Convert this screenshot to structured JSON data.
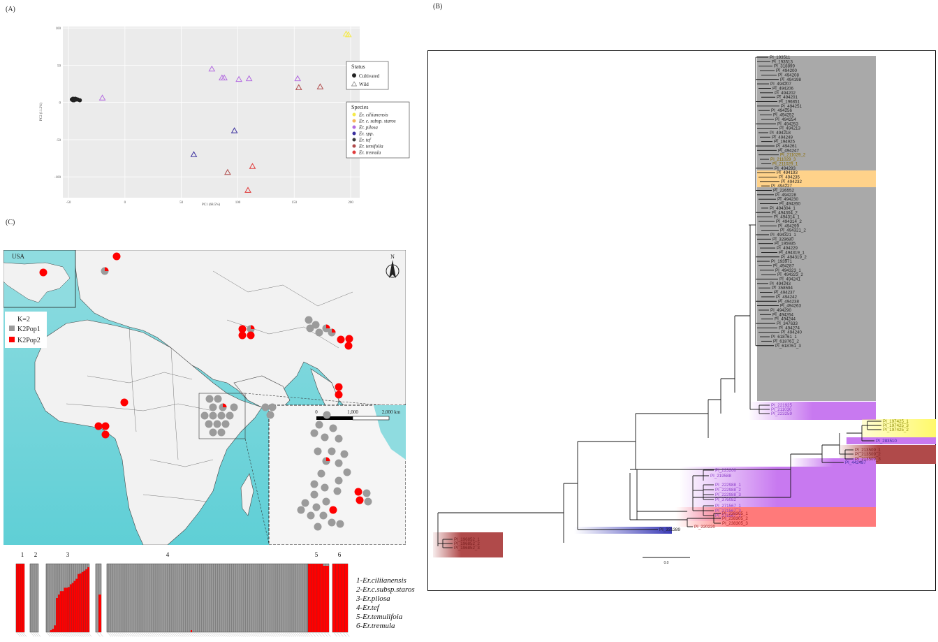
{
  "panels": {
    "a": "(A)",
    "b": "(B)",
    "c": "(C)"
  },
  "pca": {
    "xlabel": "PC1 (68.5%)",
    "ylabel": "PC2 (11.2%)",
    "xticks": [
      -50,
      0,
      50,
      100,
      150,
      200
    ],
    "yticks": [
      100,
      50,
      0,
      -50,
      -100
    ],
    "xlim": [
      -55,
      208
    ],
    "ylim": [
      -128,
      102
    ],
    "status_title": "Status",
    "status_items": [
      "Cultivated",
      "Wild"
    ],
    "species_title": "Species",
    "species": [
      {
        "name": "Er. ciliianensis",
        "color": "#f5ea4a"
      },
      {
        "name": "Er. c. subsp. staros",
        "color": "#f5b55a"
      },
      {
        "name": "Er. pilosa",
        "color": "#b36be0"
      },
      {
        "name": "Er. spp.",
        "color": "#3a2f9e"
      },
      {
        "name": "Er. tef",
        "color": "#3a3a3a"
      },
      {
        "name": "Er. temifolia",
        "color": "#b04a4a"
      },
      {
        "name": "Er. tremula",
        "color": "#e03a3a"
      }
    ]
  },
  "chart_data": [
    {
      "type": "scatter",
      "xlabel": "PC1 (68.5%)",
      "ylabel": "PC2 (11.2%)",
      "xlim": [
        -55,
        208
      ],
      "ylim": [
        -128,
        102
      ],
      "series": [
        {
          "name": "Cultivated",
          "marker": "circle",
          "color": "#222222",
          "points": [
            [
              -47,
              4
            ],
            [
              -46,
              5
            ],
            [
              -45,
              4
            ],
            [
              -44,
              5
            ],
            [
              -46,
              3
            ],
            [
              -45,
              3
            ],
            [
              -43,
              4
            ],
            [
              -42,
              4
            ],
            [
              -40,
              3
            ]
          ]
        },
        {
          "name": "Wild",
          "marker": "triangle",
          "points": [
            {
              "x": 196,
              "y": 92,
              "color": "#f5ea4a"
            },
            {
              "x": 198,
              "y": 91,
              "color": "#f5ea4a"
            },
            {
              "x": -20,
              "y": 6,
              "color": "#b36be0"
            },
            {
              "x": 77,
              "y": 45,
              "color": "#b36be0"
            },
            {
              "x": 86,
              "y": 33,
              "color": "#b36be0"
            },
            {
              "x": 88,
              "y": 33,
              "color": "#b36be0"
            },
            {
              "x": 101,
              "y": 31,
              "color": "#b36be0"
            },
            {
              "x": 110,
              "y": 32,
              "color": "#b36be0"
            },
            {
              "x": 153,
              "y": 32,
              "color": "#b36be0"
            },
            {
              "x": 97,
              "y": -38,
              "color": "#3a2f9e"
            },
            {
              "x": 61,
              "y": -70,
              "color": "#3a2f9e"
            },
            {
              "x": 154,
              "y": 20,
              "color": "#b04a4a"
            },
            {
              "x": 173,
              "y": 21,
              "color": "#b04a4a"
            },
            {
              "x": 91,
              "y": -94,
              "color": "#b04a4a"
            },
            {
              "x": 113,
              "y": -86,
              "color": "#e03a3a"
            },
            {
              "x": 109,
              "y": -118,
              "color": "#e03a3a"
            }
          ]
        }
      ]
    },
    {
      "type": "bar",
      "groups": [
        {
          "label": "1",
          "n": 4,
          "red": [
            1,
            1,
            1,
            1
          ]
        },
        {
          "label": "2",
          "n": 4,
          "red": [
            0,
            0,
            0,
            0
          ]
        },
        {
          "label": "3",
          "n": 22,
          "red": [
            0,
            0,
            0.03,
            0.05,
            0.1,
            0.5,
            0.55,
            0.6,
            0.6,
            0.65,
            0.65,
            0.66,
            0.7,
            0.72,
            0.75,
            0.78,
            0.85,
            0.86,
            0.88,
            0.9,
            0.92,
            0.95
          ]
        },
        {
          "label": "",
          "n": 2,
          "red": [
            0,
            0.55
          ]
        },
        {
          "label": "4",
          "n": 100,
          "red": []
        },
        {
          "label": "5",
          "n": 7,
          "red": [
            1,
            1,
            1,
            1,
            1,
            0.97,
            0.97
          ]
        },
        {
          "label": "6",
          "n": 5,
          "red": [
            1,
            1,
            1,
            1,
            1
          ]
        }
      ],
      "legend": [
        "1-Er.ciliianensis",
        "2-Er.c.subsp.staros",
        "3-Er.pilosa",
        "4-Er.tef",
        "5-Er.temulifoia",
        "6-Er.tremula"
      ]
    }
  ],
  "map": {
    "inset_label": "USA",
    "legend_title": "K=2",
    "legend_items": [
      {
        "name": "K2Pop1",
        "color": "#9b9b9b"
      },
      {
        "name": "K2Pop2",
        "color": "#ff0000"
      }
    ],
    "scale_labels": [
      "0",
      "1,000",
      "2,000 km"
    ],
    "north": "N"
  },
  "tree": {
    "scale_label": "0.0",
    "tef_labels": [
      "PI_193511",
      "PI_193513",
      "PI_318899",
      "PI_494200",
      "PI_494208",
      "PI_494198",
      "PI_494207",
      "PI_494206",
      "PI_494202",
      "PI_494201",
      "PI_196851",
      "PI_494251",
      "PI_494256",
      "PI_494252",
      "PI_494254",
      "PI_494253",
      "PI_494213",
      "PI_494218",
      "PI_494249",
      "PI_194925",
      "PI_494261",
      "PI_494247"
    ],
    "staros_labels": [
      "PI_211029_2",
      "PI_211029_3",
      "PI_211029_1"
    ],
    "tef_labels2": [
      "PI_494293",
      "PI_494193",
      "PI_494235",
      "PI_494232",
      "PI_494227",
      "PI_226552",
      "PI_494228",
      "PI_494230",
      "PI_494260",
      "PI_494304_1",
      "PI_494304_2",
      "PI_494314_1",
      "PI_494314_2",
      "PI_494299",
      "PI_494321_2",
      "PI_494321_1",
      "PI_329680",
      "PI_195935",
      "PI_494229",
      "PI_494319_1",
      "PI_494319_2",
      "PI_193971",
      "PI_494287",
      "PI_494323_1",
      "PI_494323_2",
      "PI_494241",
      "PI_494243",
      "PI_358594",
      "PI_494237",
      "PI_494242",
      "PI_494238",
      "PI_494263",
      "PI_494290",
      "PI_494264",
      "PI_494244",
      "PI_347633",
      "PI_494274",
      "PI_494240",
      "PI_618761_1",
      "PI_618761_2",
      "PI_618761_3"
    ],
    "pilosa_a": [
      "PI_221925",
      "PI_211030",
      "PI_223259"
    ],
    "cil_labels": [
      "PI_197425_1",
      "PI_197425_3",
      "PI_197425_2"
    ],
    "spp_a": "PI_283510",
    "temi_labels": [
      "PI_213509_1",
      "PI_213509_2",
      "PI_213509_3"
    ],
    "spp_b": "PI_442487",
    "pilosa_b": [
      "PI_223260",
      "PI_219588",
      "PI_222988_1",
      "PI_222988_2",
      "PI_222988_3",
      "PI_376082",
      "PI_271567_1",
      "PI_271567_3",
      "PI_271567_2"
    ],
    "trem_labels": [
      "PI_238305_1",
      "PI_238305_2",
      "PI_238305_3",
      "PI_220220"
    ],
    "spp_c": "PI_331389",
    "out_labels": [
      "PI_196852_1",
      "PI_196852_2",
      "PI_196852_3"
    ]
  }
}
